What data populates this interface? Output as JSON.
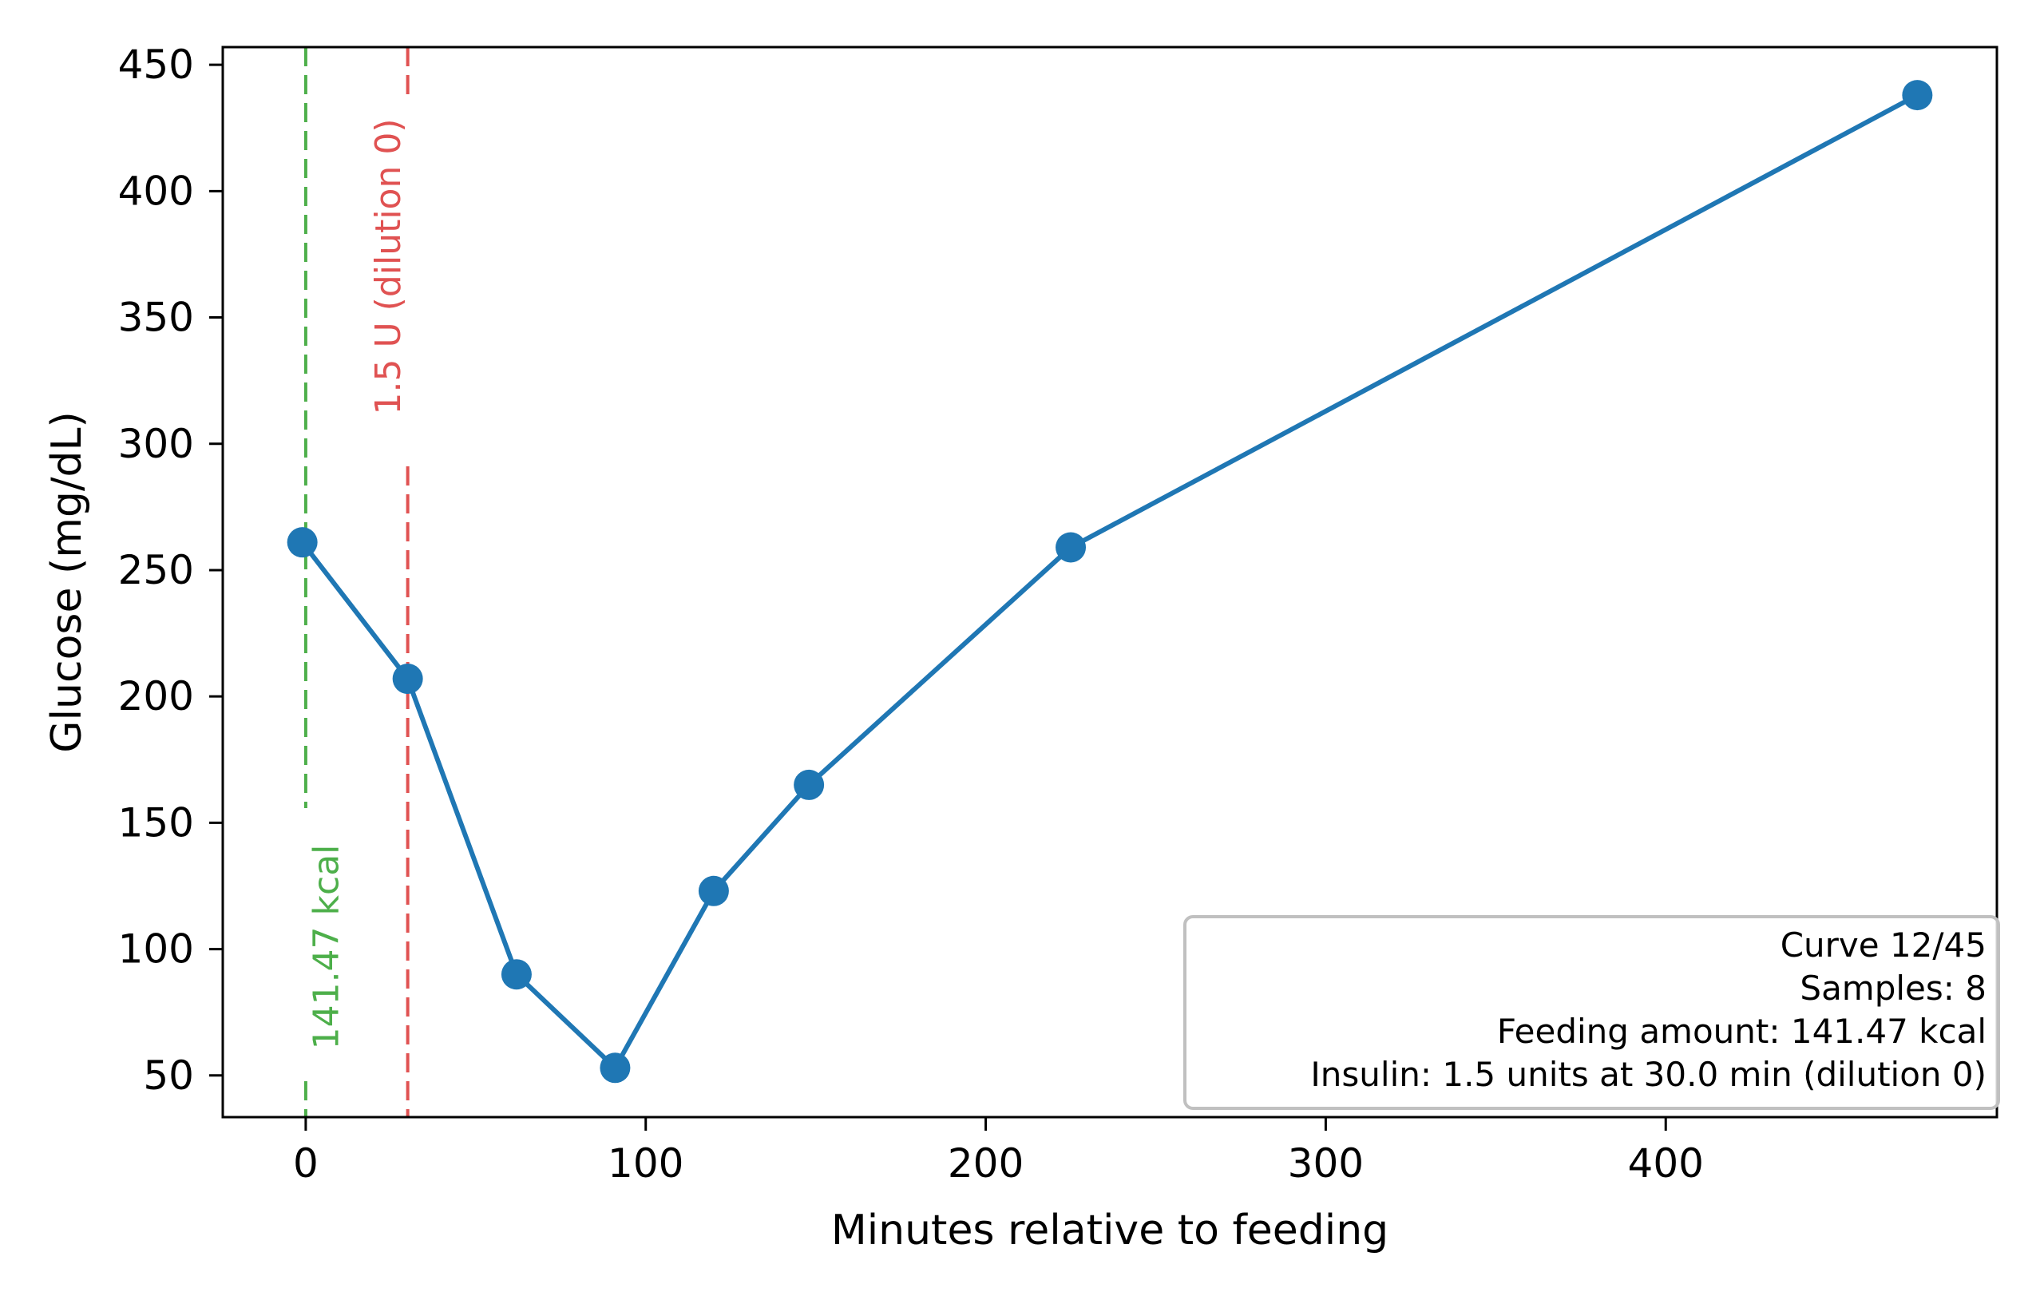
{
  "chart_data": {
    "type": "line",
    "title": "",
    "xlabel": "Minutes relative to feeding",
    "ylabel": "Glucose (mg/dL)",
    "xlim": [
      -24.4,
      497.4
    ],
    "ylim": [
      33.5,
      457
    ],
    "x_ticks": [
      0,
      100,
      200,
      300,
      400
    ],
    "y_ticks": [
      50,
      100,
      150,
      200,
      250,
      300,
      350,
      400,
      450
    ],
    "grid": false,
    "series": [
      {
        "name": "Glucose",
        "color": "#1f77b4",
        "x": [
          -1,
          30,
          62,
          91,
          120,
          148,
          225,
          474
        ],
        "y": [
          261,
          207,
          90,
          53,
          123,
          165,
          259,
          438
        ]
      }
    ],
    "vertical_lines": [
      {
        "x": 0,
        "color": "#4daf4a",
        "label": "141.47 kcal",
        "label_position": "bottom"
      },
      {
        "x": 30,
        "color": "#e05252",
        "label": "1.5 U (dilution 0)",
        "label_position": "top"
      }
    ],
    "annotation_box": {
      "position": "bottom-right",
      "lines": [
        "Curve 12/45",
        "Samples: 8",
        "Feeding amount: 141.47 kcal",
        "Insulin: 1.5 units at 30.0 min (dilution 0)"
      ]
    }
  }
}
